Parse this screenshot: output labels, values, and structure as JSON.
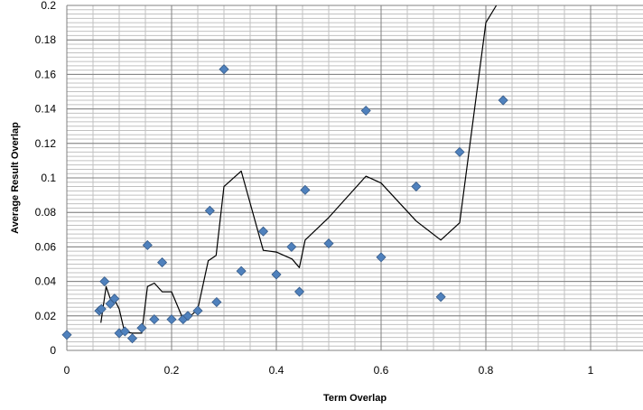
{
  "chart_data": {
    "type": "scatter",
    "title": "",
    "xlabel": "Term Overlap",
    "ylabel": "Average Result Overlap",
    "xlim": [
      0,
      1.1
    ],
    "ylim": [
      0,
      0.2
    ],
    "x_ticks": [
      0,
      0.2,
      0.4,
      0.6,
      0.8,
      1
    ],
    "x_tick_labels": [
      "0",
      "0.2",
      "0.4",
      "0.6",
      "0.8",
      "1"
    ],
    "y_ticks": [
      0,
      0.02,
      0.04,
      0.06,
      0.08,
      0.1,
      0.12,
      0.14,
      0.16,
      0.18,
      0.2
    ],
    "y_tick_labels": [
      "0",
      "0.02",
      "0.04",
      "0.06",
      "0.08",
      "0.1",
      "0.12",
      "0.14",
      "0.16",
      "0.18",
      "0.2"
    ],
    "grid": true,
    "legend": "none",
    "colors": {
      "points": "#4f81bd",
      "points_stroke": "#385d8a",
      "line": "#000000",
      "major_grid": "#808080",
      "minor_grid": "#c0c0c0"
    },
    "series": [
      {
        "type": "scatter",
        "points": [
          [
            0.0,
            0.009
          ],
          [
            0.062,
            0.023
          ],
          [
            0.066,
            0.024
          ],
          [
            0.072,
            0.04
          ],
          [
            0.083,
            0.027
          ],
          [
            0.091,
            0.03
          ],
          [
            0.1,
            0.01
          ],
          [
            0.111,
            0.011
          ],
          [
            0.125,
            0.007
          ],
          [
            0.143,
            0.013
          ],
          [
            0.154,
            0.061
          ],
          [
            0.167,
            0.018
          ],
          [
            0.182,
            0.051
          ],
          [
            0.2,
            0.018
          ],
          [
            0.222,
            0.018
          ],
          [
            0.231,
            0.02
          ],
          [
            0.25,
            0.023
          ],
          [
            0.273,
            0.081
          ],
          [
            0.286,
            0.028
          ],
          [
            0.3,
            0.163
          ],
          [
            0.333,
            0.046
          ],
          [
            0.375,
            0.069
          ],
          [
            0.4,
            0.044
          ],
          [
            0.429,
            0.06
          ],
          [
            0.444,
            0.034
          ],
          [
            0.455,
            0.093
          ],
          [
            0.5,
            0.062
          ],
          [
            0.571,
            0.139
          ],
          [
            0.6,
            0.054
          ],
          [
            0.667,
            0.095
          ],
          [
            0.714,
            0.031
          ],
          [
            0.75,
            0.115
          ],
          [
            0.833,
            0.145
          ]
        ]
      },
      {
        "type": "line",
        "points": [
          [
            0.065,
            0.016
          ],
          [
            0.075,
            0.037
          ],
          [
            0.083,
            0.03
          ],
          [
            0.09,
            0.03
          ],
          [
            0.1,
            0.024
          ],
          [
            0.11,
            0.011
          ],
          [
            0.125,
            0.01
          ],
          [
            0.143,
            0.01
          ],
          [
            0.154,
            0.037
          ],
          [
            0.167,
            0.039
          ],
          [
            0.182,
            0.034
          ],
          [
            0.2,
            0.034
          ],
          [
            0.222,
            0.018
          ],
          [
            0.24,
            0.021
          ],
          [
            0.25,
            0.024
          ],
          [
            0.27,
            0.052
          ],
          [
            0.285,
            0.055
          ],
          [
            0.3,
            0.095
          ],
          [
            0.333,
            0.104
          ],
          [
            0.375,
            0.058
          ],
          [
            0.4,
            0.057
          ],
          [
            0.43,
            0.053
          ],
          [
            0.444,
            0.048
          ],
          [
            0.455,
            0.064
          ],
          [
            0.5,
            0.077
          ],
          [
            0.571,
            0.101
          ],
          [
            0.6,
            0.097
          ],
          [
            0.667,
            0.075
          ],
          [
            0.714,
            0.064
          ],
          [
            0.75,
            0.074
          ],
          [
            0.8,
            0.19
          ],
          [
            0.82,
            0.2
          ]
        ]
      }
    ]
  }
}
